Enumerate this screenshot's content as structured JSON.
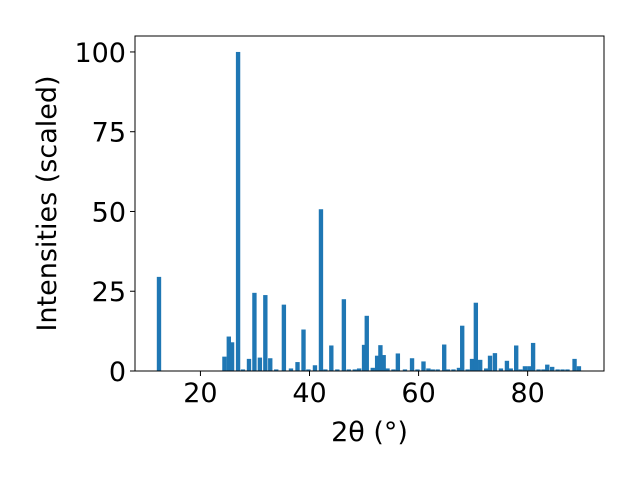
{
  "chart_data": {
    "type": "bar",
    "xlabel": "2θ (°)",
    "ylabel": "Intensities (scaled)",
    "xlim": [
      8,
      94
    ],
    "ylim": [
      0,
      105
    ],
    "grid": false,
    "x_ticks": [
      20,
      40,
      60,
      80
    ],
    "y_ticks": [
      0,
      25,
      50,
      75,
      100
    ],
    "bar_width": 0.8,
    "bar_color": "#1f77b4",
    "x": [
      12.4,
      24.4,
      25.2,
      25.8,
      26.9,
      27.8,
      28.9,
      29.9,
      30.9,
      31.9,
      32.8,
      33.9,
      35.3,
      36.6,
      37.8,
      38.9,
      39.8,
      41.0,
      42.1,
      42.9,
      44.0,
      45.1,
      46.3,
      47.2,
      48.3,
      49.1,
      50.0,
      50.5,
      51.6,
      52.4,
      53.0,
      53.6,
      54.3,
      55.4,
      56.2,
      57.5,
      58.8,
      59.8,
      60.9,
      61.8,
      62.6,
      63.5,
      64.7,
      65.4,
      66.4,
      67.4,
      68.0,
      69.0,
      69.8,
      70.5,
      71.3,
      72.4,
      73.1,
      74.0,
      75.1,
      76.2,
      76.9,
      77.9,
      78.7,
      79.5,
      80.3,
      81.0,
      82.0,
      82.9,
      83.6,
      84.5,
      85.5,
      86.4,
      87.3,
      88.6,
      89.4
    ],
    "values": [
      29.5,
      4.5,
      10.8,
      9.0,
      100.0,
      0.5,
      3.8,
      24.5,
      4.2,
      23.8,
      4.0,
      0.5,
      20.8,
      0.8,
      2.8,
      13.0,
      0.5,
      1.8,
      50.7,
      0.5,
      8.0,
      0.5,
      22.5,
      0.5,
      0.5,
      0.8,
      8.2,
      17.3,
      1.0,
      4.8,
      8.1,
      5.0,
      0.8,
      0.5,
      5.5,
      0.5,
      4.0,
      0.5,
      3.0,
      0.8,
      0.5,
      0.5,
      8.3,
      0.5,
      0.5,
      1.0,
      14.2,
      0.5,
      3.8,
      21.4,
      3.5,
      0.8,
      4.8,
      5.6,
      0.8,
      3.2,
      0.8,
      8.0,
      0.5,
      1.5,
      1.5,
      8.8,
      0.5,
      0.5,
      2.0,
      1.3,
      0.5,
      0.5,
      0.5,
      3.8,
      1.5
    ]
  }
}
